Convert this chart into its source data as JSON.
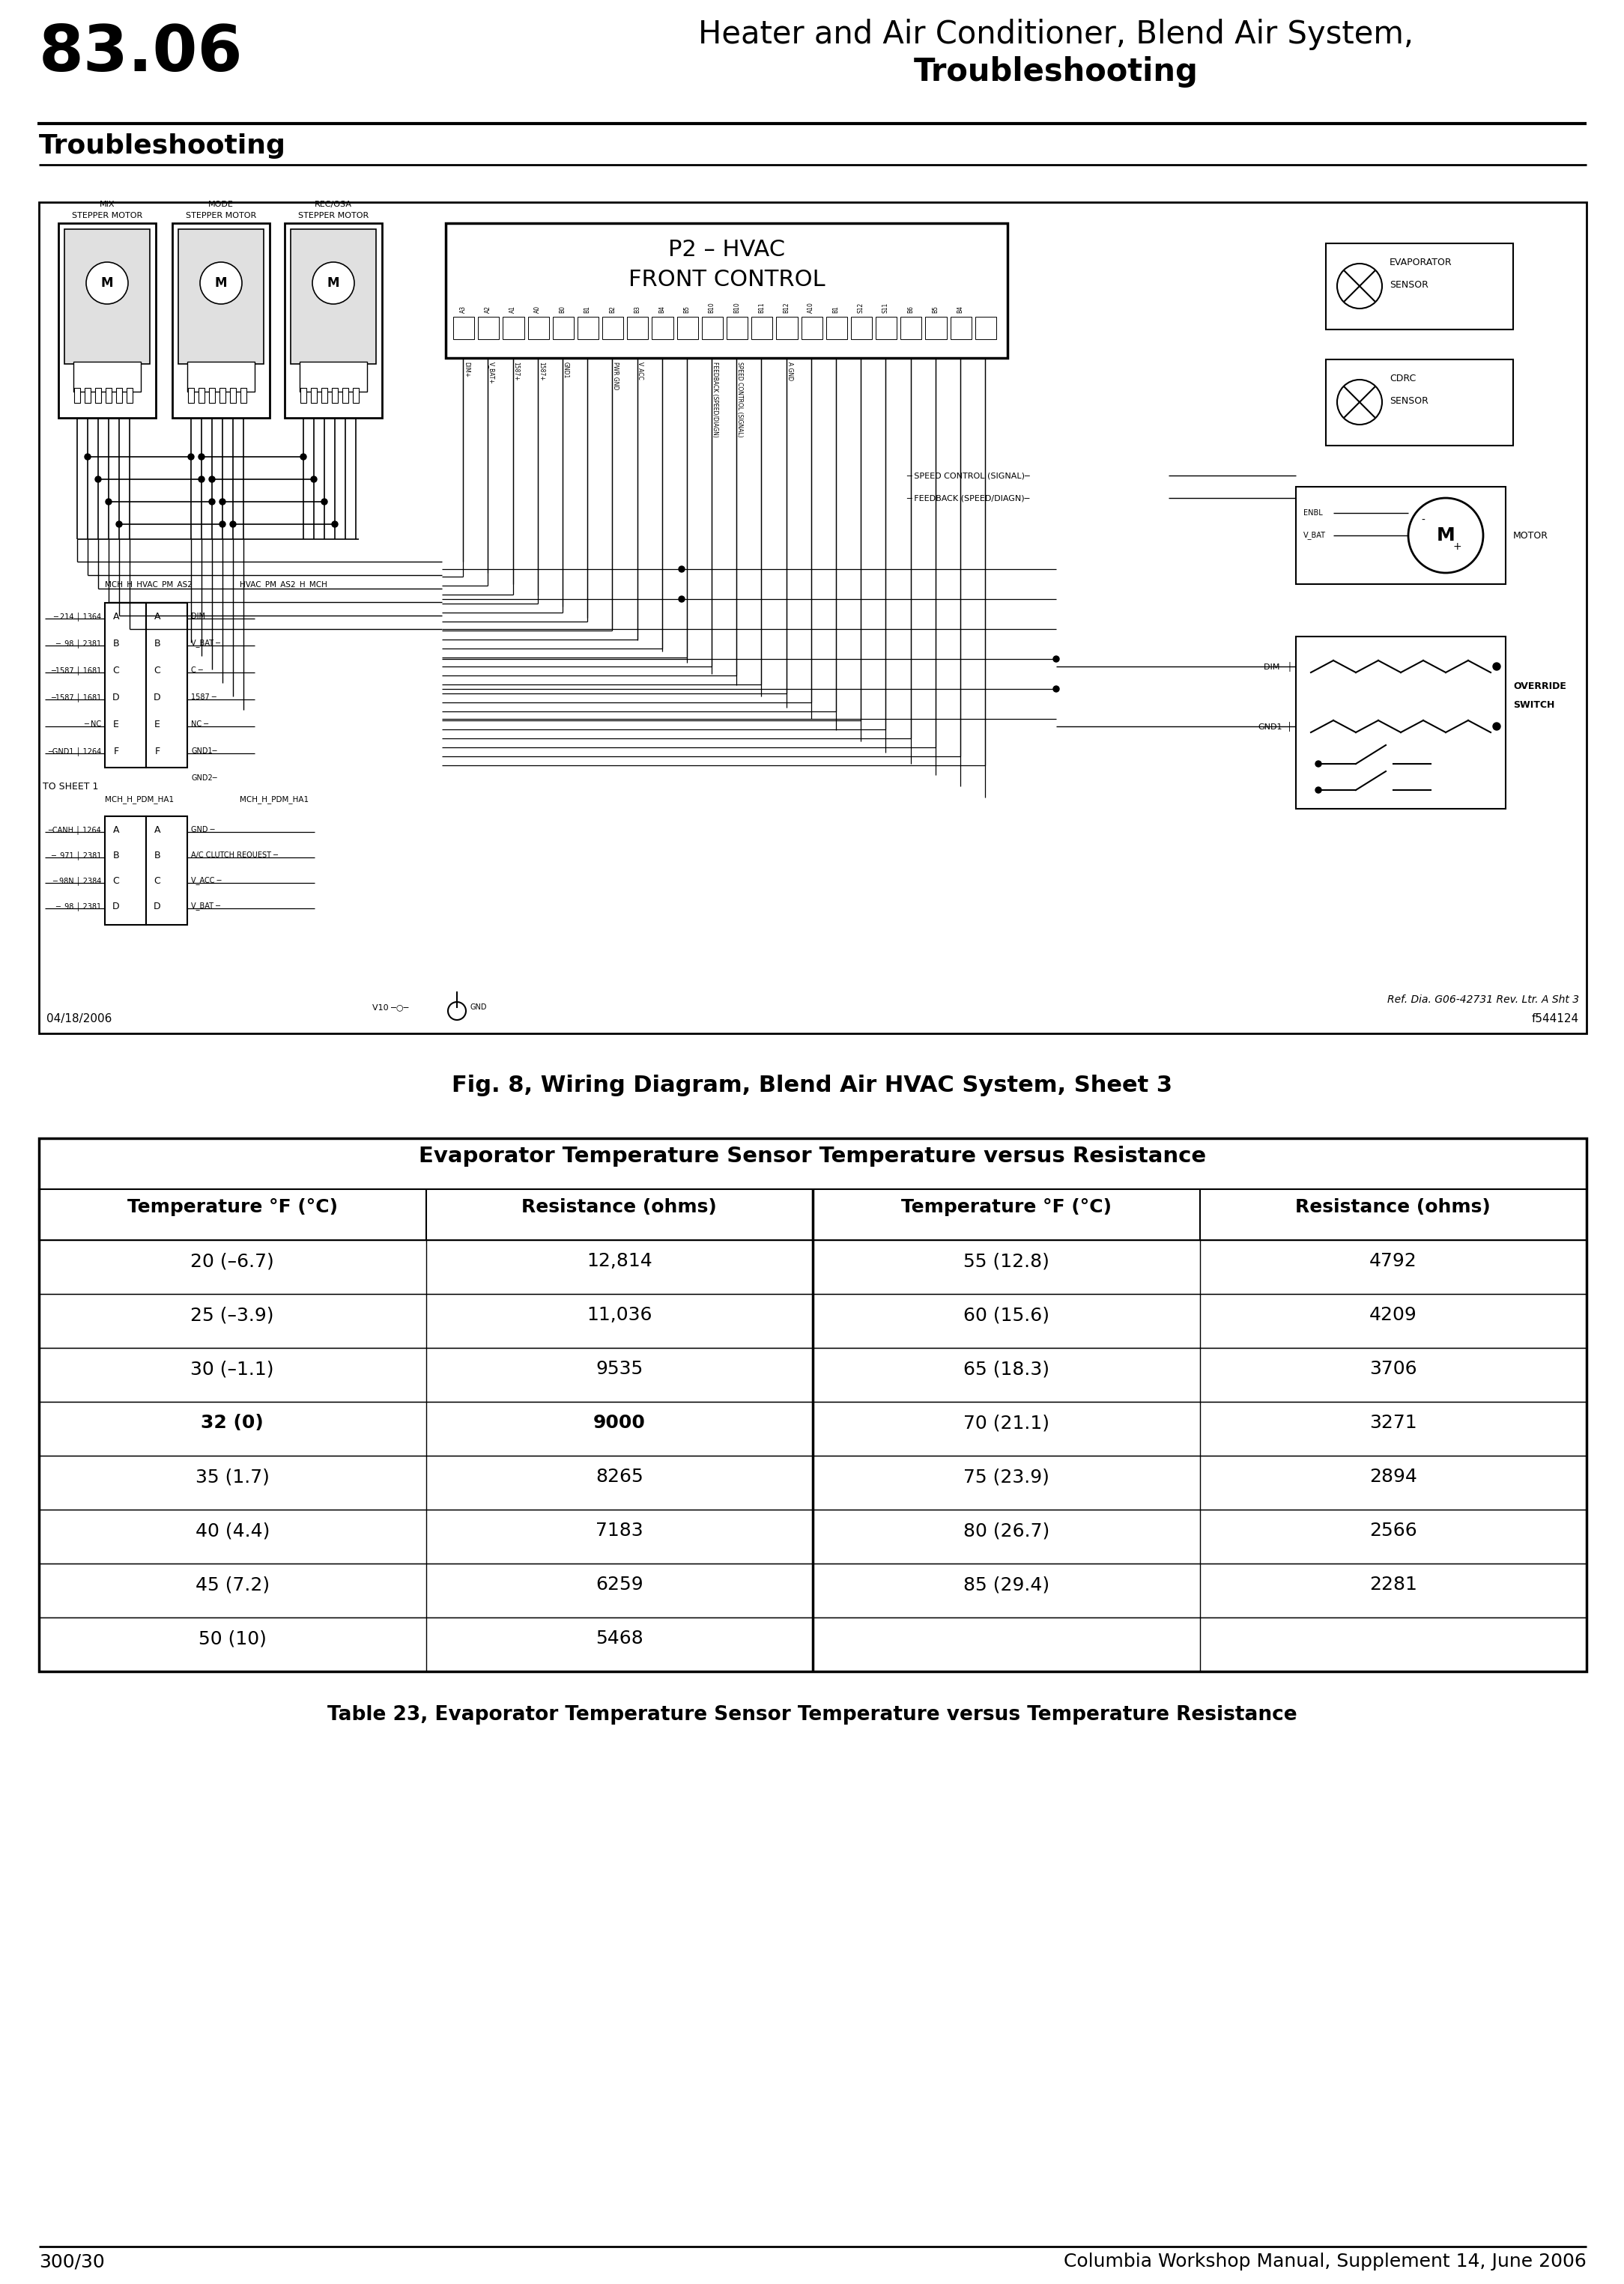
{
  "page_number": "83.06",
  "header_title_line1": "Heater and Air Conditioner, Blend Air System,",
  "header_title_line2": "Troubleshooting",
  "section_title": "Troubleshooting",
  "fig_caption": "Fig. 8, Wiring Diagram, Blend Air HVAC System, Sheet 3",
  "table_title": "Evaporator Temperature Sensor Temperature versus Resistance",
  "table_caption": "Table 23, Evaporator Temperature Sensor Temperature versus Temperature Resistance",
  "col_headers": [
    "Temperature °F (°C)",
    "Resistance (ohms)",
    "Temperature °F (°C)",
    "Resistance (ohms)"
  ],
  "table_data_left": [
    [
      "20 (–6.7)",
      "12,814"
    ],
    [
      "25 (–3.9)",
      "11,036"
    ],
    [
      "30 (–1.1)",
      "9535"
    ],
    [
      "32 (0)",
      "9000"
    ],
    [
      "35 (1.7)",
      "8265"
    ],
    [
      "40 (4.4)",
      "7183"
    ],
    [
      "45 (7.2)",
      "6259"
    ],
    [
      "50 (10)",
      "5468"
    ]
  ],
  "table_data_right": [
    [
      "55 (12.8)",
      "4792"
    ],
    [
      "60 (15.6)",
      "4209"
    ],
    [
      "65 (18.3)",
      "3706"
    ],
    [
      "70 (21.1)",
      "3271"
    ],
    [
      "75 (23.9)",
      "2894"
    ],
    [
      "80 (26.7)",
      "2566"
    ],
    [
      "85 (29.4)",
      "2281"
    ],
    [
      "",
      ""
    ]
  ],
  "bold_row_index": 3,
  "footer_left": "300/30",
  "footer_right": "Columbia Workshop Manual, Supplement 14, June 2006",
  "date_stamp": "04/18/2006",
  "ref_text": "Ref. Dia. G06-42731 Rev. Ltr. A Sht 3",
  "fig_number_right": "f544124",
  "bg_color": "#ffffff",
  "diagram_bg": "#ffffff"
}
